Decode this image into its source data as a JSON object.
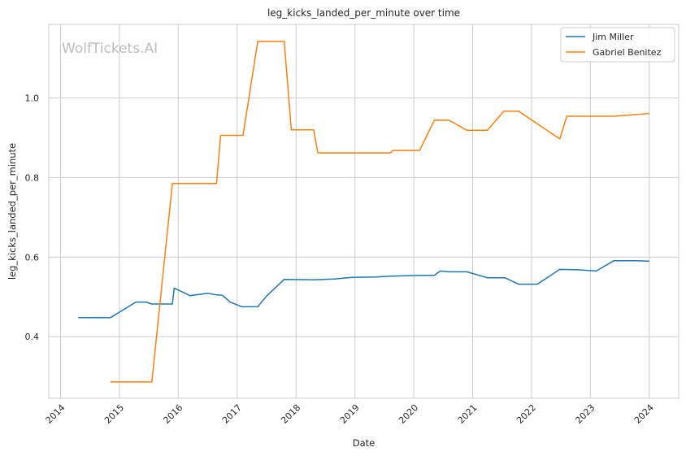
{
  "chart_data": {
    "type": "line",
    "title": "leg_kicks_landed_per_minute over time",
    "xlabel": "Date",
    "ylabel": "leg_kicks_landed_per_minute",
    "watermark": "WolfTickets.AI",
    "xlim": [
      2013.8,
      2024.5
    ],
    "ylim": [
      0.245,
      1.185
    ],
    "xticks": [
      2014,
      2015,
      2016,
      2017,
      2018,
      2019,
      2020,
      2021,
      2022,
      2023,
      2024
    ],
    "xtick_labels": [
      "2014",
      "2015",
      "2016",
      "2017",
      "2018",
      "2019",
      "2020",
      "2021",
      "2022",
      "2023",
      "2024"
    ],
    "yticks": [
      0.4,
      0.6,
      0.8,
      1.0
    ],
    "ytick_labels": [
      "0.4",
      "0.6",
      "0.8",
      "1.0"
    ],
    "grid": true,
    "legend_position": "top-right",
    "series": [
      {
        "name": "Jim Miller",
        "color": "#1f77b4",
        "x": [
          2014.3,
          2014.85,
          2015.28,
          2015.45,
          2015.55,
          2015.75,
          2015.9,
          2015.93,
          2016.2,
          2016.5,
          2016.65,
          2016.75,
          2016.88,
          2017.08,
          2017.35,
          2017.5,
          2017.8,
          2018.3,
          2018.65,
          2018.95,
          2019.35,
          2019.6,
          2019.85,
          2020.1,
          2020.35,
          2020.45,
          2020.6,
          2020.9,
          2021.25,
          2021.55,
          2021.78,
          2022.1,
          2022.48,
          2022.78,
          2023.1,
          2023.4,
          2023.75,
          2024.0
        ],
        "y": [
          0.448,
          0.448,
          0.487,
          0.487,
          0.482,
          0.482,
          0.482,
          0.522,
          0.503,
          0.509,
          0.505,
          0.504,
          0.487,
          0.475,
          0.475,
          0.502,
          0.544,
          0.543,
          0.545,
          0.549,
          0.55,
          0.552,
          0.553,
          0.554,
          0.554,
          0.565,
          0.563,
          0.563,
          0.548,
          0.548,
          0.532,
          0.532,
          0.569,
          0.568,
          0.565,
          0.591,
          0.591,
          0.59
        ]
      },
      {
        "name": "Gabriel Benitez",
        "color": "#ff7f0e",
        "x": [
          2014.85,
          2015.55,
          2015.9,
          2016.65,
          2016.72,
          2017.1,
          2017.35,
          2017.8,
          2017.92,
          2018.3,
          2018.37,
          2019.6,
          2019.65,
          2020.1,
          2020.35,
          2020.6,
          2020.9,
          2021.25,
          2021.53,
          2021.78,
          2022.48,
          2022.6,
          2023.4,
          2024.0
        ],
        "y": [
          0.286,
          0.286,
          0.785,
          0.785,
          0.906,
          0.906,
          1.142,
          1.142,
          0.92,
          0.92,
          0.862,
          0.862,
          0.868,
          0.868,
          0.944,
          0.944,
          0.919,
          0.919,
          0.967,
          0.967,
          0.897,
          0.954,
          0.954,
          0.961
        ]
      }
    ]
  }
}
